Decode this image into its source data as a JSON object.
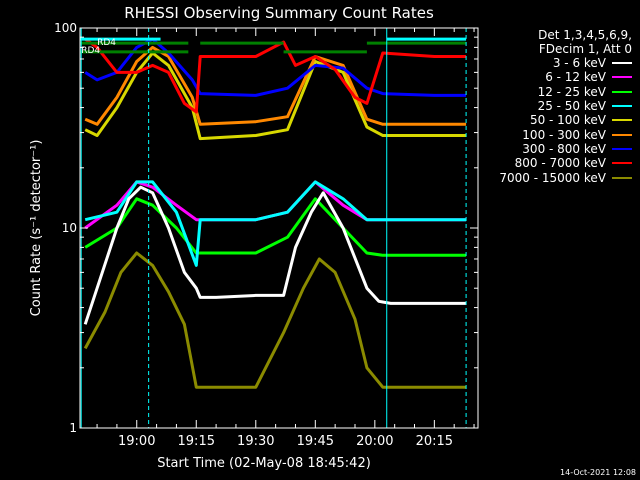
{
  "chart_data": {
    "type": "line",
    "title": "RHESSI Observing Summary Count Rates",
    "xlabel": "Start Time (02-May-08 18:45:42)",
    "ylabel": "Count Rate (s⁻¹ detector⁻¹)",
    "y_scale": "log",
    "ylim": [
      1,
      100
    ],
    "y_ticks": [
      1,
      10,
      100
    ],
    "y_tick_labels": [
      "1",
      "10",
      "100"
    ],
    "x_ticks": [
      "19:00",
      "19:15",
      "19:30",
      "19:45",
      "20:00",
      "20:15"
    ],
    "x_tick_values": [
      "02-May-08 19:00:00",
      "02-May-08 19:15:00",
      "02-May-08 19:30:00",
      "02-May-08 19:45:00",
      "02-May-08 20:00:00",
      "02-May-08 20:15:00"
    ],
    "x_range": [
      "02-May-08 18:45:42",
      "02-May-08 20:26:00"
    ],
    "grid": false,
    "legend_position": "right",
    "legend_header": [
      "Det 1,3,4,5,6,9,",
      "FDecim 1, Att 0"
    ],
    "series": [
      {
        "name": "3 - 6 keV",
        "color": "#ffffff",
        "x": [
          "18:47",
          "18:50",
          "18:55",
          "18:58",
          "19:01",
          "19:04",
          "19:08",
          "19:12",
          "19:15",
          "19:16",
          "19:20",
          "19:30",
          "19:37",
          "19:40",
          "19:44",
          "19:47",
          "19:52",
          "19:58",
          "20:01",
          "20:04",
          "20:15",
          "20:23"
        ],
        "y": [
          3.3,
          5,
          10,
          14,
          16,
          15,
          10,
          6,
          5,
          4.5,
          4.5,
          4.6,
          4.6,
          8,
          12,
          15,
          10,
          5,
          4.3,
          4.2,
          4.2,
          4.2
        ]
      },
      {
        "name": "6 - 12 keV",
        "color": "#ff00ff",
        "x": [
          "18:47",
          "18:55",
          "19:00",
          "19:04",
          "19:10",
          "19:15",
          "19:30",
          "19:38",
          "19:45",
          "19:52",
          "19:58",
          "20:02",
          "20:15",
          "20:23"
        ],
        "y": [
          10,
          13,
          17,
          16,
          13,
          11,
          11,
          12,
          17,
          13,
          11,
          11,
          11,
          11
        ]
      },
      {
        "name": "12 - 25 keV",
        "color": "#00ff00",
        "x": [
          "18:47",
          "18:55",
          "19:00",
          "19:04",
          "19:10",
          "19:15",
          "19:30",
          "19:38",
          "19:45",
          "19:52",
          "19:58",
          "20:02",
          "20:15",
          "20:23"
        ],
        "y": [
          8,
          10,
          14,
          13,
          10,
          7.5,
          7.5,
          9,
          14,
          10,
          7.5,
          7.3,
          7.3,
          7.3
        ]
      },
      {
        "name": "25 - 50 keV",
        "color": "#00ffff",
        "x": [
          "18:47",
          "18:55",
          "19:00",
          "19:04",
          "19:10",
          "19:15",
          "19:16",
          "19:30",
          "19:38",
          "19:45",
          "19:52",
          "19:58",
          "20:02",
          "20:15",
          "20:23"
        ],
        "y": [
          11,
          12,
          17,
          17,
          12,
          6.5,
          11,
          11,
          12,
          17,
          14,
          11,
          11,
          11,
          11
        ]
      },
      {
        "name": "50 - 100 keV",
        "color": "#d8d800",
        "x": [
          "18:47",
          "18:50",
          "18:55",
          "19:00",
          "19:04",
          "19:08",
          "19:14",
          "19:16",
          "19:30",
          "19:38",
          "19:45",
          "19:52",
          "19:58",
          "20:02",
          "20:15",
          "20:23"
        ],
        "y": [
          31,
          29,
          40,
          60,
          75,
          65,
          40,
          28,
          29,
          31,
          68,
          60,
          32,
          29,
          29,
          29
        ]
      },
      {
        "name": "100 - 300 keV",
        "color": "#ff8800",
        "x": [
          "18:47",
          "18:50",
          "18:55",
          "19:00",
          "19:04",
          "19:08",
          "19:14",
          "19:16",
          "19:30",
          "19:38",
          "19:45",
          "19:52",
          "19:58",
          "20:02",
          "20:15",
          "20:23"
        ],
        "y": [
          35,
          33,
          45,
          68,
          80,
          72,
          45,
          33,
          34,
          36,
          72,
          65,
          35,
          33,
          33,
          33
        ]
      },
      {
        "name": "300 - 800 keV",
        "color": "#0000ff",
        "x": [
          "18:47",
          "18:50",
          "18:55",
          "19:00",
          "19:04",
          "19:08",
          "19:14",
          "19:16",
          "19:30",
          "19:38",
          "19:45",
          "19:52",
          "19:58",
          "20:02",
          "20:15",
          "20:23"
        ],
        "y": [
          60,
          55,
          60,
          80,
          88,
          75,
          55,
          47,
          46,
          50,
          65,
          63,
          50,
          47,
          46,
          46
        ]
      },
      {
        "name": "800 - 7000 keV",
        "color": "#ff0000",
        "x": [
          "18:47",
          "18:50",
          "18:55",
          "19:00",
          "19:04",
          "19:08",
          "19:12",
          "19:15",
          "19:16",
          "19:30",
          "19:37",
          "19:40",
          "19:45",
          "19:50",
          "19:55",
          "19:58",
          "20:02",
          "20:15",
          "20:23"
        ],
        "y": [
          88,
          80,
          60,
          60,
          65,
          60,
          42,
          38,
          72,
          72,
          85,
          65,
          72,
          62,
          45,
          42,
          75,
          72,
          72
        ]
      },
      {
        "name": "7000 - 15000 keV",
        "color": "#8b8b00",
        "x": [
          "18:47",
          "18:52",
          "18:56",
          "19:00",
          "19:04",
          "19:08",
          "19:12",
          "19:15",
          "19:20",
          "19:30",
          "19:37",
          "19:42",
          "19:46",
          "19:50",
          "19:55",
          "19:58",
          "20:02",
          "20:10",
          "20:23"
        ],
        "y": [
          2.5,
          3.8,
          6,
          7.5,
          6.5,
          4.8,
          3.3,
          1.6,
          1.6,
          1.6,
          3,
          5,
          7,
          6,
          3.5,
          2,
          1.6,
          1.6,
          1.6
        ]
      }
    ],
    "annotations": [
      {
        "text": "RD4",
        "x": "18:46",
        "y": 75
      },
      {
        "text": "RD4",
        "x": "18:50",
        "y": 82
      }
    ],
    "reference_series": [
      {
        "name": "attenuator-green",
        "color": "#008000",
        "segments": [
          {
            "x": [
              "18:45:42",
              "19:13"
            ],
            "y": 84
          },
          {
            "x": [
              "18:45:42",
              "19:13"
            ],
            "y": 76
          },
          {
            "x": [
              "19:16",
              "19:37"
            ],
            "y": 84
          },
          {
            "x": [
              "19:37",
              "19:58"
            ],
            "y": 76
          },
          {
            "x": [
              "19:58",
              "20:23"
            ],
            "y": 84
          }
        ]
      },
      {
        "name": "cyan-top",
        "color": "#00ffff",
        "segments": [
          {
            "x": [
              "18:45:42",
              "19:06"
            ],
            "y": 88
          },
          {
            "x": [
              "20:03",
              "20:23"
            ],
            "y": 88
          }
        ]
      }
    ],
    "vertical_markers": [
      {
        "x": "18:46",
        "color": "#00ffff",
        "style": "solid"
      },
      {
        "x": "19:03",
        "color": "#00ffff",
        "style": "dashed"
      },
      {
        "x": "20:03",
        "color": "#00ffff",
        "style": "solid"
      },
      {
        "x": "20:23",
        "color": "#00ffff",
        "style": "dashed"
      }
    ]
  },
  "timestamp": "14-Oct-2021 12:08"
}
